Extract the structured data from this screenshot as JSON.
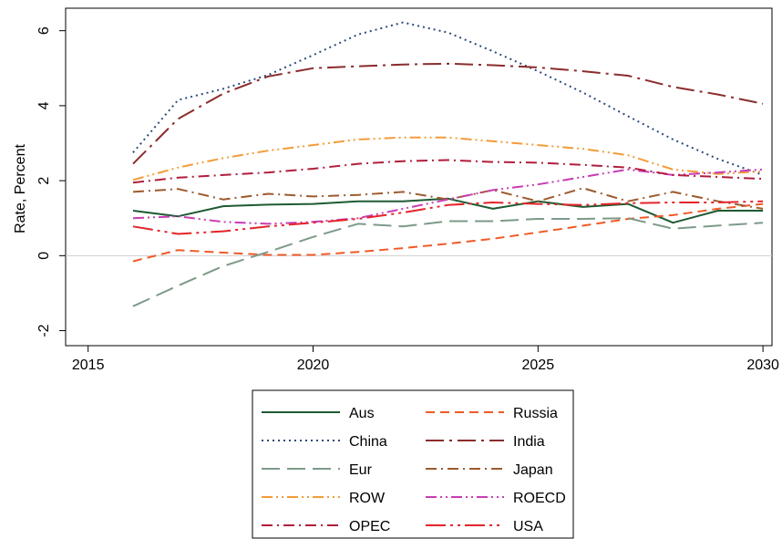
{
  "chart_data": {
    "type": "line",
    "title": "",
    "xlabel": "",
    "ylabel": "Rate, Percent",
    "xlim": [
      2014.5,
      2030.2
    ],
    "ylim": [
      -2.4,
      6.6
    ],
    "xticks": [
      2015,
      2020,
      2025,
      2030
    ],
    "xtick_labels": [
      "2015",
      "2020",
      "2025",
      "2030"
    ],
    "yticks": [
      -2,
      0,
      2,
      4,
      6
    ],
    "ytick_labels": [
      "-2",
      "0",
      "2",
      "4",
      "6"
    ],
    "zero_line": true,
    "grid": false,
    "legend_position": "bottom",
    "x": [
      2016,
      2017,
      2018,
      2019,
      2020,
      2021,
      2022,
      2023,
      2024,
      2025,
      2026,
      2027,
      2028,
      2029,
      2030
    ],
    "series": [
      {
        "name": "Aus",
        "color": "#1e5a32",
        "dash": "solid",
        "values": [
          1.2,
          1.05,
          1.32,
          1.36,
          1.38,
          1.45,
          1.45,
          1.52,
          1.25,
          1.45,
          1.3,
          1.38,
          0.88,
          1.2,
          1.2
        ]
      },
      {
        "name": "Russia",
        "color": "#f05a28",
        "dash": "dash",
        "values": [
          -0.15,
          0.15,
          0.08,
          0.02,
          0.02,
          0.1,
          0.2,
          0.32,
          0.45,
          0.62,
          0.8,
          0.98,
          1.08,
          1.25,
          1.38
        ]
      },
      {
        "name": "China",
        "color": "#2c4a7c",
        "dash": "dot",
        "values": [
          2.75,
          4.15,
          4.45,
          4.82,
          5.35,
          5.9,
          6.22,
          5.95,
          5.45,
          4.92,
          4.35,
          3.72,
          3.1,
          2.58,
          2.15
        ]
      },
      {
        "name": "India",
        "color": "#8b2c2c",
        "dash": "longdashdot",
        "values": [
          2.45,
          3.65,
          4.32,
          4.78,
          5.0,
          5.05,
          5.1,
          5.12,
          5.08,
          5.02,
          4.92,
          4.8,
          4.5,
          4.3,
          4.05
        ]
      },
      {
        "name": "Eur",
        "color": "#7d9a88",
        "dash": "longdash",
        "values": [
          -1.35,
          -0.8,
          -0.28,
          0.1,
          0.5,
          0.85,
          0.78,
          0.92,
          0.92,
          0.98,
          0.98,
          1.0,
          0.72,
          0.8,
          0.88
        ]
      },
      {
        "name": "Japan",
        "color": "#9e5a2e",
        "dash": "dashdot",
        "values": [
          1.7,
          1.78,
          1.5,
          1.65,
          1.58,
          1.62,
          1.7,
          1.5,
          1.75,
          1.45,
          1.8,
          1.45,
          1.7,
          1.45,
          1.25
        ]
      },
      {
        "name": "ROW",
        "color": "#f39c3a",
        "dash": "dashdotdot",
        "values": [
          2.02,
          2.35,
          2.6,
          2.8,
          2.95,
          3.1,
          3.15,
          3.15,
          3.05,
          2.95,
          2.85,
          2.68,
          2.3,
          2.18,
          2.25
        ]
      },
      {
        "name": "ROECD",
        "color": "#c83cb4",
        "dash": "dashdotdot",
        "values": [
          1.0,
          1.05,
          0.9,
          0.85,
          0.9,
          1.0,
          1.25,
          1.5,
          1.75,
          1.9,
          2.1,
          2.3,
          2.15,
          2.22,
          2.3
        ]
      },
      {
        "name": "OPEC",
        "color": "#b01e3c",
        "dash": "dashdot",
        "values": [
          1.95,
          2.08,
          2.15,
          2.22,
          2.32,
          2.45,
          2.52,
          2.55,
          2.5,
          2.48,
          2.42,
          2.35,
          2.15,
          2.1,
          2.05
        ]
      },
      {
        "name": "USA",
        "color": "#e4252a",
        "dash": "longdashdotdot",
        "values": [
          0.78,
          0.58,
          0.65,
          0.78,
          0.88,
          0.98,
          1.15,
          1.35,
          1.42,
          1.38,
          1.35,
          1.4,
          1.42,
          1.42,
          1.45
        ]
      }
    ]
  }
}
